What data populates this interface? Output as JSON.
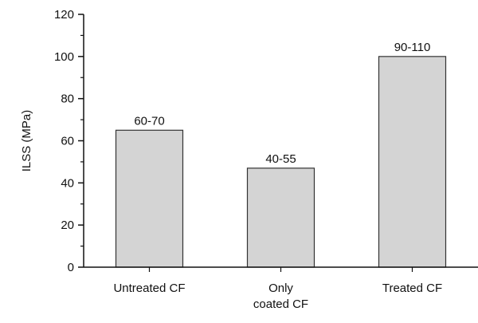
{
  "chart_data": {
    "type": "bar",
    "title": "",
    "xlabel": "",
    "ylabel": "ILSS (MPa)",
    "ylim": [
      0,
      120
    ],
    "yticks": [
      "0",
      "20",
      "40",
      "60",
      "80",
      "100",
      "120"
    ],
    "categories": [
      [
        "Untreated CF"
      ],
      [
        "Only",
        "coated CF"
      ],
      [
        "Treated CF"
      ]
    ],
    "values": [
      65,
      47,
      100
    ],
    "data_labels": [
      "60-70",
      "40-55",
      "90-110"
    ],
    "grid": false,
    "legend": "none",
    "colors": {
      "bar_fill": "#d4d4d4",
      "bar_stroke": "#333333",
      "axis": "#111111"
    }
  }
}
